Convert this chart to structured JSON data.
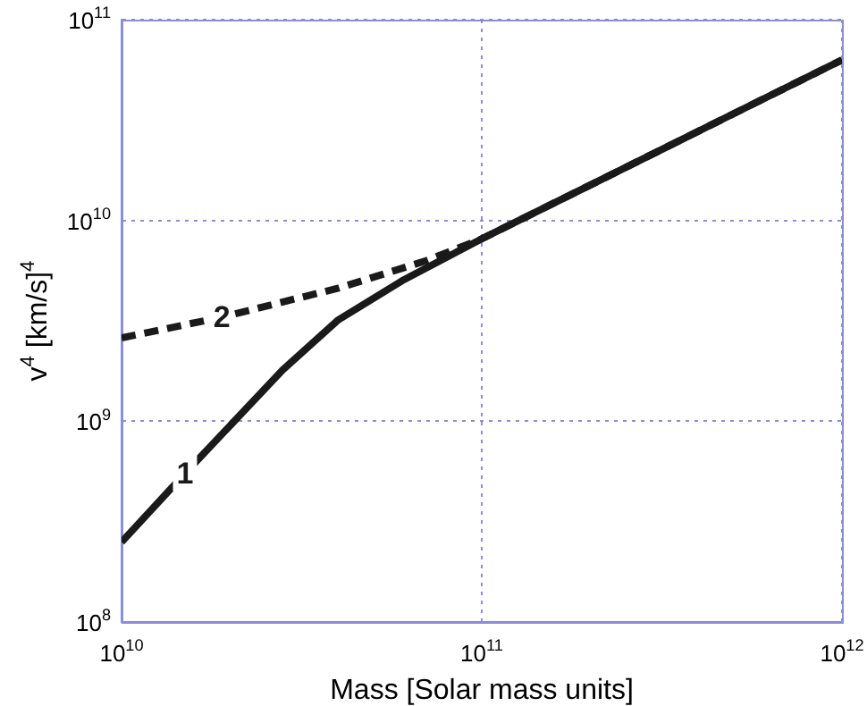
{
  "chart_data": {
    "type": "line",
    "xlabel": "Mass [Solar mass units]",
    "ylabel": "v$^{4}$ [km/s]$^{4}$",
    "log": "xy",
    "grid": true,
    "legend": false,
    "marker": "none",
    "xlim": [
      10000000000.0,
      1000000000000.0
    ],
    "ylim": [
      100000000.0,
      100000000000.0
    ],
    "xticks": [
      {
        "value": 10000000000.0,
        "label": "10$^{10}$"
      },
      {
        "value": 100000000000.0,
        "label": "10$^{11}$"
      },
      {
        "value": 1000000000000.0,
        "label": "10$^{12}$"
      }
    ],
    "yticks": [
      {
        "value": 100000000.0,
        "label": "10$^{8}$"
      },
      {
        "value": 1000000000.0,
        "label": "10$^{9}$"
      },
      {
        "value": 10000000000.0,
        "label": "10$^{10}$"
      },
      {
        "value": 100000000000.0,
        "label": "10$^{11}$"
      }
    ],
    "series": [
      {
        "name": "1",
        "color": "#1a1a1a",
        "line_style": "solid",
        "x": [
          10000000000.0,
          15000000000.0,
          28000000000.0,
          40000000000.0,
          60000000000.0,
          100000000000.0,
          200000000000.0,
          500000000000.0,
          1000000000000.0
        ],
        "values": [
          250000000.0,
          550000000.0,
          1800000000.0,
          3200000000.0,
          5000000000.0,
          8100000000.0,
          15000000000.0,
          34000000000.0,
          63000000000.0
        ]
      },
      {
        "name": "2",
        "color": "#1a1a1a",
        "line_style": "dashed",
        "x": [
          10000000000.0,
          19000000000.0,
          40000000000.0,
          70000000000.0,
          100000000000.0,
          200000000000.0,
          500000000000.0,
          1000000000000.0
        ],
        "values": [
          2600000000.0,
          3300000000.0,
          4600000000.0,
          6300000000.0,
          8100000000.0,
          15000000000.0,
          34000000000.0,
          63000000000.0
        ]
      }
    ]
  }
}
